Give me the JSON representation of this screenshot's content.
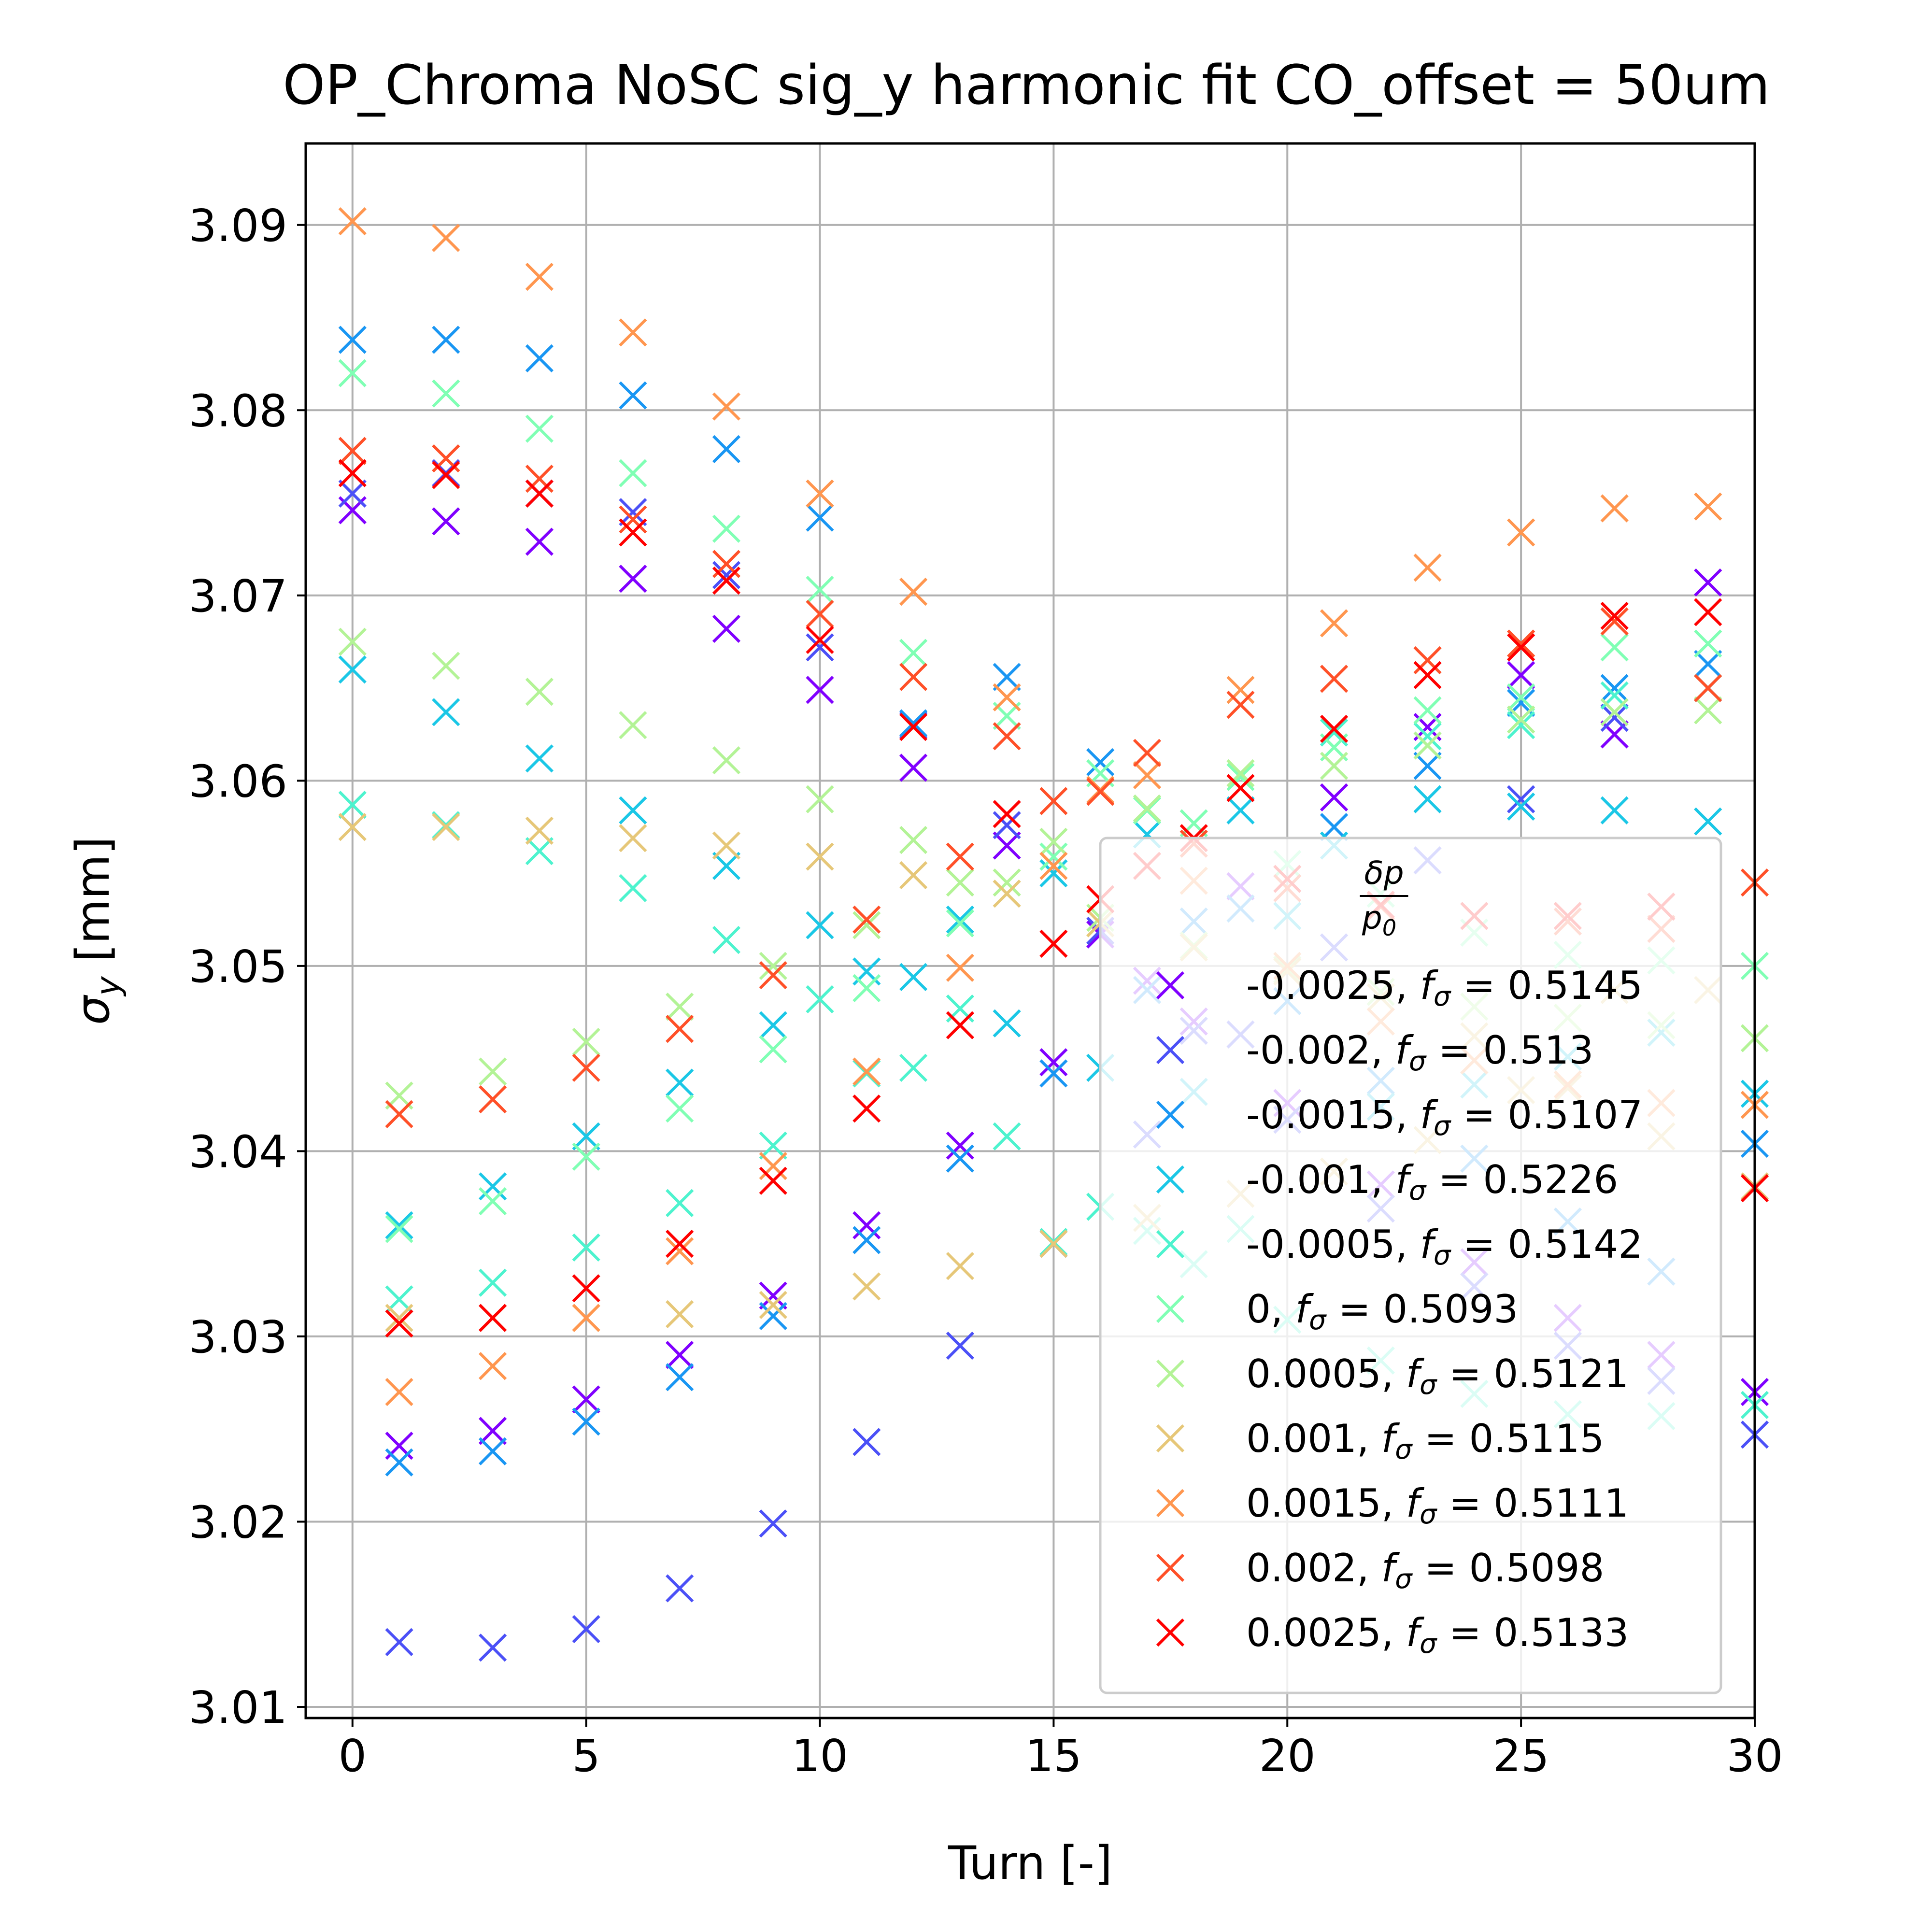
{
  "chart_data": {
    "type": "scatter",
    "title": "OP_Chroma NoSC sig_y harmonic fit CO_offset = 50um",
    "xlabel": "Turn [-]",
    "ylabel_symbol": "σ",
    "ylabel_sub": "y",
    "ylabel_rest": " [mm]",
    "xlim": [
      -1,
      30
    ],
    "ylim": [
      3.0094,
      3.0944
    ],
    "xticks": [
      0,
      5,
      10,
      15,
      20,
      25,
      30
    ],
    "xtick_labels": [
      "0",
      "5",
      "10",
      "15",
      "20",
      "25",
      "30"
    ],
    "yticks": [
      3.01,
      3.02,
      3.03,
      3.04,
      3.05,
      3.06,
      3.07,
      3.08,
      3.09
    ],
    "ytick_labels": [
      "3.01",
      "3.02",
      "3.03",
      "3.04",
      "3.05",
      "3.06",
      "3.07",
      "3.08",
      "3.09"
    ],
    "grid": true,
    "marker": "x",
    "legend": {
      "placement": "lower-right",
      "title_num": "δp",
      "title_den": "p",
      "title_den_sub": "0"
    },
    "series": [
      {
        "label": "-0.0025",
        "f_sigma": "0.5145",
        "color": "#8000ff",
        "x": [
          0,
          1,
          2,
          3,
          4,
          5,
          6,
          7,
          8,
          9,
          10,
          11,
          12,
          13,
          14,
          15,
          16,
          17,
          18,
          19,
          20,
          21,
          22,
          23,
          24,
          25,
          26,
          27,
          28,
          29,
          30
        ],
        "y": [
          3.0746,
          3.0241,
          3.074,
          3.0249,
          3.0729,
          3.0266,
          3.0709,
          3.029,
          3.0682,
          3.0322,
          3.0649,
          3.036,
          3.0607,
          3.0403,
          3.0565,
          3.0448,
          3.0517,
          3.0492,
          3.047,
          3.0543,
          3.0426,
          3.0591,
          3.0382,
          3.0629,
          3.034,
          3.0657,
          3.031,
          3.0625,
          3.029,
          3.0707,
          3.027
        ]
      },
      {
        "label": "-0.002",
        "f_sigma": "0.513",
        "color": "#4b50f7",
        "x": [
          0,
          1,
          2,
          3,
          4,
          5,
          6,
          7,
          8,
          9,
          10,
          11,
          12,
          13,
          14,
          15,
          16,
          17,
          18,
          19,
          20,
          21,
          22,
          23,
          24,
          25,
          26,
          27,
          28,
          29,
          30
        ],
        "y": [
          3.0755,
          3.0135,
          3.0766,
          3.0132,
          3.0755,
          3.0142,
          3.0745,
          3.0164,
          3.0711,
          3.0199,
          3.0672,
          3.0243,
          3.063,
          3.0295,
          3.0576,
          3.035,
          3.0519,
          3.0409,
          3.0465,
          3.0463,
          3.0417,
          3.051,
          3.0369,
          3.0557,
          3.0327,
          3.059,
          3.0295,
          3.0634,
          3.0276,
          3.065,
          3.0247
        ]
      },
      {
        "label": "-0.0015",
        "f_sigma": "0.5107",
        "color": "#1996f3",
        "x": [
          0,
          1,
          2,
          3,
          4,
          5,
          6,
          7,
          8,
          9,
          10,
          11,
          12,
          13,
          14,
          15,
          16,
          17,
          18,
          19,
          20,
          21,
          22,
          23,
          24,
          25,
          26,
          27,
          28,
          29,
          30
        ],
        "y": [
          3.0838,
          3.0232,
          3.0838,
          3.0238,
          3.0828,
          3.0254,
          3.0808,
          3.0278,
          3.0779,
          3.0311,
          3.0742,
          3.0352,
          3.0631,
          3.0396,
          3.0656,
          3.0442,
          3.061,
          3.0487,
          3.0524,
          3.0531,
          3.0481,
          3.0575,
          3.0438,
          3.0608,
          3.0396,
          3.0642,
          3.0362,
          3.065,
          3.0335,
          3.0663,
          3.0404
        ]
      },
      {
        "label": "-0.001",
        "f_sigma": "0.5226",
        "color": "#1ac7e6",
        "x": [
          0,
          1,
          2,
          3,
          4,
          5,
          6,
          7,
          8,
          9,
          10,
          11,
          12,
          13,
          14,
          15,
          16,
          17,
          18,
          19,
          20,
          21,
          22,
          23,
          24,
          25,
          26,
          27,
          28,
          29,
          30
        ],
        "y": [
          3.066,
          3.036,
          3.0637,
          3.0381,
          3.0612,
          3.0408,
          3.0584,
          3.0437,
          3.0554,
          3.0468,
          3.0522,
          3.0497,
          3.0494,
          3.0525,
          3.0469,
          3.055,
          3.0445,
          3.0571,
          3.0432,
          3.0584,
          3.0527,
          3.0565,
          3.0424,
          3.059,
          3.0436,
          3.0586,
          3.0451,
          3.0584,
          3.0464,
          3.0578,
          3.0431
        ]
      },
      {
        "label": "-0.0005",
        "f_sigma": "0.5142",
        "color": "#4df3ce",
        "x": [
          0,
          1,
          2,
          3,
          4,
          5,
          6,
          7,
          8,
          9,
          10,
          11,
          12,
          13,
          14,
          15,
          16,
          17,
          18,
          19,
          20,
          21,
          22,
          23,
          24,
          25,
          26,
          27,
          28,
          29,
          30
        ],
        "y": [
          3.0587,
          3.032,
          3.0576,
          3.0329,
          3.0562,
          3.0348,
          3.0542,
          3.0372,
          3.0514,
          3.0403,
          3.0482,
          3.0442,
          3.0445,
          3.0477,
          3.0408,
          3.0351,
          3.037,
          3.0357,
          3.0339,
          3.0358,
          3.0309,
          3.0626,
          3.0287,
          3.0624,
          3.0269,
          3.063,
          3.0258,
          3.0646,
          3.0257,
          3.065,
          3.0263
        ]
      },
      {
        "label": "0",
        "f_sigma": "0.5093",
        "color": "#80ffb4",
        "x": [
          0,
          1,
          2,
          3,
          4,
          5,
          6,
          7,
          8,
          9,
          10,
          11,
          12,
          13,
          14,
          15,
          16,
          17,
          18,
          19,
          20,
          21,
          22,
          23,
          24,
          25,
          26,
          27,
          28,
          29,
          30
        ],
        "y": [
          3.082,
          3.0358,
          3.0809,
          3.0373,
          3.079,
          3.0397,
          3.0766,
          3.0423,
          3.0736,
          3.0455,
          3.0703,
          3.0488,
          3.0669,
          3.0523,
          3.0635,
          3.0559,
          3.0604,
          3.0584,
          3.0577,
          3.0602,
          3.0555,
          3.0618,
          3.0539,
          3.0638,
          3.0518,
          3.0645,
          3.0506,
          3.0672,
          3.0503,
          3.0674,
          3.05
        ]
      },
      {
        "label": "0.0005",
        "f_sigma": "0.5121",
        "color": "#b3f396",
        "x": [
          0,
          1,
          2,
          3,
          4,
          5,
          6,
          7,
          8,
          9,
          10,
          11,
          12,
          13,
          14,
          15,
          16,
          17,
          18,
          19,
          20,
          21,
          22,
          23,
          24,
          25,
          26,
          27,
          28,
          29,
          30
        ],
        "y": [
          3.0675,
          3.043,
          3.0662,
          3.0443,
          3.0648,
          3.0459,
          3.063,
          3.0478,
          3.0611,
          3.05,
          3.059,
          3.0522,
          3.0568,
          3.0545,
          3.0545,
          3.0567,
          3.0526,
          3.0585,
          3.0511,
          3.0604,
          3.0498,
          3.0608,
          3.0486,
          3.0619,
          3.0478,
          3.0633,
          3.0472,
          3.0637,
          3.0468,
          3.0638,
          3.0461
        ]
      },
      {
        "label": "0.001",
        "f_sigma": "0.5115",
        "color": "#e6c778",
        "x": [
          0,
          1,
          2,
          3,
          4,
          5,
          6,
          7,
          8,
          9,
          10,
          11,
          12,
          13,
          14,
          15,
          16,
          17,
          18,
          19,
          20,
          21,
          22,
          23,
          24,
          25,
          26,
          27,
          28,
          29,
          30
        ],
        "y": [
          3.0575,
          3.031,
          3.0575,
          3.031,
          3.0573,
          3.031,
          3.0569,
          3.0312,
          3.0565,
          3.0317,
          3.0559,
          3.0327,
          3.0549,
          3.0338,
          3.0539,
          3.035,
          3.0523,
          3.0364,
          3.051,
          3.0377,
          3.0497,
          3.0389,
          3.0483,
          3.0406,
          3.0462,
          3.0433,
          3.0434,
          3.0487,
          3.0408,
          3.0487,
          3.0381
        ]
      },
      {
        "label": "0.0015",
        "f_sigma": "0.5111",
        "color": "#ff964f",
        "x": [
          0,
          1,
          2,
          3,
          4,
          5,
          6,
          7,
          8,
          9,
          10,
          11,
          12,
          13,
          14,
          15,
          16,
          17,
          18,
          19,
          20,
          21,
          22,
          23,
          24,
          25,
          26,
          27,
          28,
          29,
          30
        ],
        "y": [
          3.0902,
          3.027,
          3.0893,
          3.0284,
          3.0872,
          3.031,
          3.0842,
          3.0346,
          3.0802,
          3.0392,
          3.0755,
          3.0443,
          3.0702,
          3.0499,
          3.0645,
          3.0554,
          3.0595,
          3.0603,
          3.0546,
          3.0649,
          3.05,
          3.0685,
          3.047,
          3.0715,
          3.0449,
          3.0734,
          3.0436,
          3.0747,
          3.0426,
          3.0748,
          3.0425
        ]
      },
      {
        "label": "0.002",
        "f_sigma": "0.5098",
        "color": "#ff5028",
        "x": [
          0,
          1,
          2,
          3,
          4,
          5,
          6,
          7,
          8,
          9,
          10,
          11,
          12,
          13,
          14,
          15,
          16,
          17,
          18,
          19,
          20,
          21,
          22,
          23,
          24,
          25,
          26,
          27,
          28,
          29,
          30
        ],
        "y": [
          3.0778,
          3.042,
          3.0774,
          3.0428,
          3.0763,
          3.0445,
          3.0741,
          3.0466,
          3.0717,
          3.0495,
          3.069,
          3.0525,
          3.0656,
          3.0559,
          3.0624,
          3.0589,
          3.0594,
          3.0615,
          3.0566,
          3.0641,
          3.0542,
          3.0655,
          3.0532,
          3.0665,
          3.0527,
          3.0674,
          3.0524,
          3.0686,
          3.052,
          3.065,
          3.0545
        ]
      },
      {
        "label": "0.0025",
        "f_sigma": "0.5133",
        "color": "#ff0000",
        "x": [
          0,
          1,
          2,
          3,
          4,
          5,
          6,
          7,
          8,
          9,
          10,
          11,
          12,
          13,
          14,
          15,
          16,
          17,
          18,
          19,
          20,
          21,
          22,
          23,
          24,
          25,
          26,
          27,
          28,
          29,
          30
        ],
        "y": [
          3.0766,
          3.0307,
          3.0765,
          3.031,
          3.0755,
          3.0326,
          3.0734,
          3.035,
          3.0708,
          3.0384,
          3.0676,
          3.0423,
          3.0629,
          3.0468,
          3.0582,
          3.0512,
          3.0536,
          3.0554,
          3.0569,
          3.0596,
          3.0547,
          3.0628,
          3.0533,
          3.0657,
          3.0527,
          3.0672,
          3.0527,
          3.0689,
          3.0532,
          3.0691,
          3.038
        ]
      }
    ]
  }
}
